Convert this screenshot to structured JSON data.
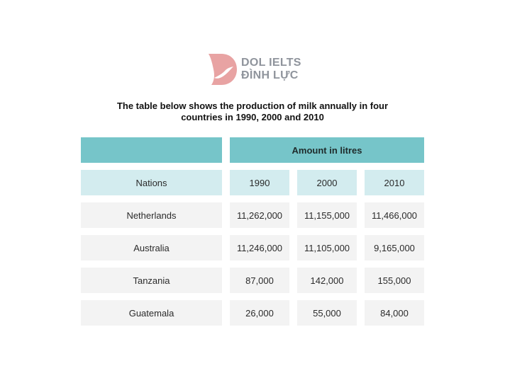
{
  "logo": {
    "line1": "DOL IELTS",
    "line2": "ĐÌNH LỰC"
  },
  "title": "The table below shows the production of milk annually in four countries in 1990, 2000 and 2010",
  "chart_data": {
    "type": "table",
    "group_header": "Amount in litres",
    "columns": [
      "Nations",
      "1990",
      "2000",
      "2010"
    ],
    "rows": [
      [
        "Netherlands",
        "11,262,000",
        "11,155,000",
        "11,466,000"
      ],
      [
        "Australia",
        "11,246,000",
        "11,105,000",
        "9,165,000"
      ],
      [
        "Tanzania",
        "87,000",
        "142,000",
        "155,000"
      ],
      [
        "Guatemala",
        "26,000",
        "55,000",
        "84,000"
      ]
    ],
    "colors": {
      "header_dark": "#76c5c9",
      "header_light": "#d3ecef",
      "body": "#f3f3f3",
      "logo_pink": "#e8a3a3",
      "logo_text": "#8f949c"
    }
  }
}
